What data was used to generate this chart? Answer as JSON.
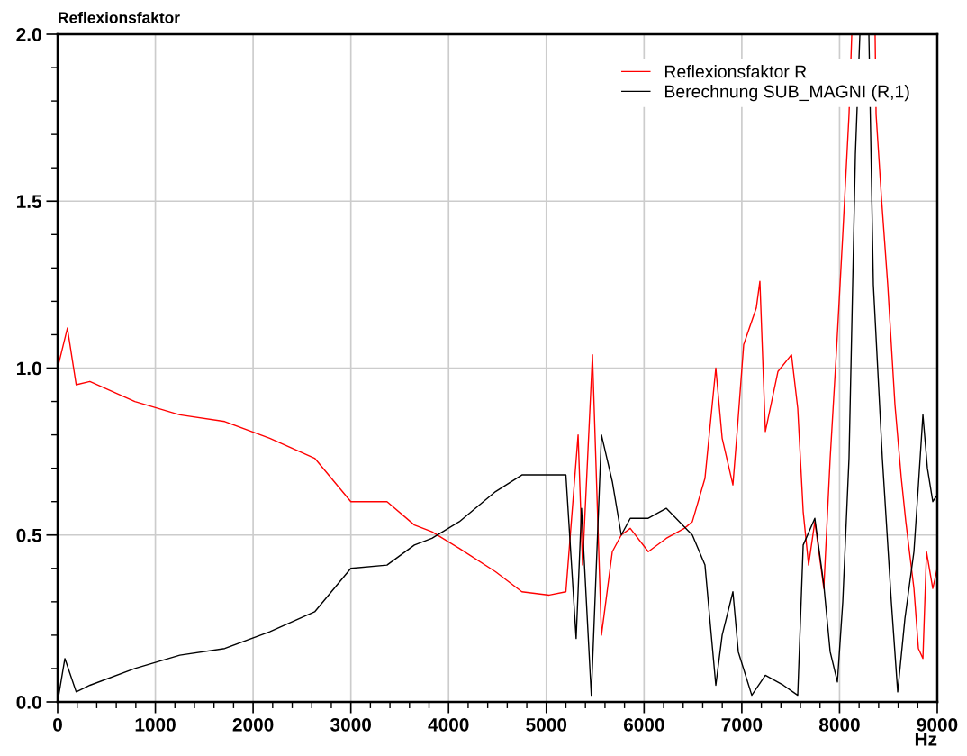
{
  "chart_data": {
    "type": "line",
    "xlabel": "Hz",
    "ylabel": "Reflexionsfaktor",
    "xlim": [
      0,
      9000
    ],
    "ylim": [
      0,
      2.0
    ],
    "xticks": [
      0,
      1000,
      2000,
      3000,
      4000,
      5000,
      6000,
      7000,
      8000,
      9000,
      {
        "value": 200,
        "label": null
      },
      {
        "value": 400,
        "label": null
      },
      {
        "value": 600,
        "label": null
      },
      {
        "value": 800,
        "label": null
      },
      {
        "value": 1200,
        "label": null
      },
      {
        "value": 1400,
        "label": null
      },
      {
        "value": 1600,
        "label": null
      },
      {
        "value": 1800,
        "label": null
      },
      {
        "value": 2200,
        "label": null
      },
      {
        "value": 2400,
        "label": null
      },
      {
        "value": 2600,
        "label": null
      },
      {
        "value": 2800,
        "label": null
      },
      {
        "value": 3200,
        "label": null
      },
      {
        "value": 3400,
        "label": null
      },
      {
        "value": 3600,
        "label": null
      },
      {
        "value": 3800,
        "label": null
      },
      {
        "value": 4200,
        "label": null
      },
      {
        "value": 4400,
        "label": null
      },
      {
        "value": 4600,
        "label": null
      },
      {
        "value": 4800,
        "label": null
      },
      {
        "value": 5200,
        "label": null
      },
      {
        "value": 5400,
        "label": null
      },
      {
        "value": 5600,
        "label": null
      },
      {
        "value": 5800,
        "label": null
      },
      {
        "value": 6200,
        "label": null
      },
      {
        "value": 6400,
        "label": null
      },
      {
        "value": 6600,
        "label": null
      },
      {
        "value": 6800,
        "label": null
      },
      {
        "value": 7200,
        "label": null
      },
      {
        "value": 7400,
        "label": null
      },
      {
        "value": 7600,
        "label": null
      },
      {
        "value": 7800,
        "label": null
      },
      {
        "value": 8200,
        "label": null
      },
      {
        "value": 8400,
        "label": null
      },
      {
        "value": 8600,
        "label": null
      },
      {
        "value": 8800,
        "label": null
      }
    ],
    "yticks": [
      {
        "value": 0,
        "label": "0.0"
      },
      0.5,
      {
        "value": 1.0,
        "label": "1.0"
      },
      1.5,
      {
        "value": 2.0,
        "label": "2.0"
      },
      {
        "value": 0.1,
        "label": null
      },
      {
        "value": 0.2,
        "label": null
      },
      {
        "value": 0.3,
        "label": null
      },
      {
        "value": 0.4,
        "label": null
      },
      {
        "value": 0.6,
        "label": null
      },
      {
        "value": 0.7,
        "label": null
      },
      {
        "value": 0.8,
        "label": null
      },
      {
        "value": 0.9,
        "label": null
      },
      {
        "value": 1.1,
        "label": null
      },
      {
        "value": 1.2,
        "label": null
      },
      {
        "value": 1.3,
        "label": null
      },
      {
        "value": 1.4,
        "label": null
      },
      {
        "value": 1.6,
        "label": null
      },
      {
        "value": 1.7,
        "label": null
      },
      {
        "value": 1.8,
        "label": null
      },
      {
        "value": 1.9,
        "label": null
      }
    ],
    "grid": true,
    "legend": "top right",
    "marker": "none",
    "line_style": "solid",
    "series": [
      {
        "name": "Reflexionsfaktor R",
        "color": "#ff0000",
        "x": [
          0,
          100,
          190,
          330,
          790,
          1250,
          1710,
          2170,
          2630,
          3000,
          3370,
          3650,
          3830,
          4110,
          4480,
          4750,
          5030,
          5200,
          5325,
          5371,
          5472,
          5564,
          5675,
          5767,
          5859,
          6043,
          6227,
          6412,
          6494,
          6623,
          6734,
          6799,
          6909,
          6955,
          7019,
          7148,
          7185,
          7241,
          7370,
          7508,
          7572,
          7628,
          7683,
          7747,
          7839,
          7904,
          7968,
          8033,
          8097,
          8125,
          8250,
          8364,
          8374,
          8429,
          8493,
          8567,
          8632,
          8678,
          8761,
          8807,
          8853,
          8890,
          8954,
          9000
        ],
        "values": [
          1.0,
          1.12,
          0.95,
          0.96,
          0.9,
          0.86,
          0.84,
          0.79,
          0.73,
          0.6,
          0.6,
          0.53,
          0.51,
          0.46,
          0.39,
          0.33,
          0.32,
          0.33,
          0.8,
          0.41,
          1.04,
          0.2,
          0.45,
          0.5,
          0.52,
          0.45,
          0.49,
          0.52,
          0.54,
          0.67,
          1.0,
          0.79,
          0.65,
          0.82,
          1.07,
          1.18,
          1.26,
          0.81,
          0.99,
          1.04,
          0.88,
          0.57,
          0.41,
          0.54,
          0.34,
          0.73,
          1.05,
          1.4,
          1.76,
          2.0,
          null,
          2.0,
          1.76,
          1.51,
          1.25,
          0.89,
          0.67,
          0.54,
          0.34,
          0.16,
          0.13,
          0.45,
          0.34,
          0.4
        ]
      },
      {
        "name": "Berechnung SUB_MAGNI (R,1)",
        "color": "#000000",
        "x": [
          0,
          74,
          190,
          330,
          790,
          1250,
          1710,
          2170,
          2630,
          3000,
          3370,
          3650,
          3830,
          4110,
          4480,
          4750,
          5030,
          5200,
          5305,
          5360,
          5460,
          5564,
          5675,
          5767,
          5859,
          6043,
          6227,
          6494,
          6623,
          6734,
          6799,
          6909,
          6964,
          7102,
          7241,
          7425,
          7572,
          7628,
          7747,
          7839,
          7904,
          7978,
          8033,
          8097,
          8162,
          8208,
          8260,
          8300,
          8346,
          8438,
          8530,
          8595,
          8669,
          8761,
          8807,
          8853,
          8899,
          8954,
          9000
        ],
        "values": [
          0.0,
          0.13,
          0.03,
          0.05,
          0.1,
          0.14,
          0.16,
          0.21,
          0.27,
          0.4,
          0.41,
          0.47,
          0.49,
          0.54,
          0.63,
          0.68,
          0.68,
          0.68,
          0.19,
          0.58,
          0.02,
          0.8,
          0.66,
          0.5,
          0.55,
          0.55,
          0.58,
          0.5,
          0.41,
          0.05,
          0.2,
          0.33,
          0.15,
          0.02,
          0.08,
          0.05,
          0.02,
          0.47,
          0.55,
          0.35,
          0.15,
          0.06,
          0.3,
          0.73,
          1.64,
          2.0,
          null,
          2.0,
          1.25,
          0.73,
          0.3,
          0.03,
          0.25,
          0.45,
          0.65,
          0.86,
          0.7,
          0.6,
          0.62
        ]
      }
    ]
  }
}
